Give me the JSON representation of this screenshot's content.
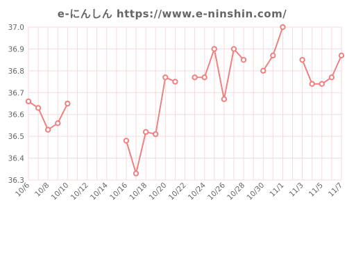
{
  "chart_data": {
    "type": "line",
    "title": "e-にんしん https://www.e-ninshin.com/",
    "xlabel": "",
    "ylabel": "",
    "ylim": [
      36.3,
      37.0
    ],
    "yticks": [
      "36.3",
      "36.4",
      "36.5",
      "36.6",
      "36.7",
      "36.8",
      "36.9",
      "37.0"
    ],
    "grid": true,
    "colors": {
      "line": "#f08080",
      "grid": "#f6d9d9",
      "text": "#666666"
    },
    "x": [
      "10/6",
      "10/7",
      "10/8",
      "10/9",
      "10/10",
      "10/11",
      "10/12",
      "10/13",
      "10/14",
      "10/15",
      "10/16",
      "10/17",
      "10/18",
      "10/19",
      "10/20",
      "10/21",
      "10/22",
      "10/23",
      "10/24",
      "10/25",
      "10/26",
      "10/27",
      "10/28",
      "10/29",
      "10/30",
      "10/31",
      "11/1",
      "11/2",
      "11/3",
      "11/4",
      "11/5",
      "11/6",
      "11/7"
    ],
    "xtick_labels": [
      "10/6",
      "10/8",
      "10/10",
      "10/12",
      "10/14",
      "10/16",
      "10/18",
      "10/20",
      "10/22",
      "10/24",
      "10/26",
      "10/28",
      "10/30",
      "11/1",
      "11/3",
      "11/5",
      "11/7"
    ],
    "series": [
      {
        "values": [
          36.66,
          36.63,
          36.53,
          36.56,
          36.65,
          null,
          null,
          null,
          null,
          null,
          36.48,
          36.33,
          36.52,
          36.51,
          36.77,
          36.75,
          null,
          36.77,
          36.77,
          36.9,
          36.67,
          36.9,
          36.85,
          null,
          36.8,
          36.87,
          37.0,
          null,
          36.85,
          36.74,
          36.74,
          36.77,
          36.87
        ]
      }
    ]
  }
}
